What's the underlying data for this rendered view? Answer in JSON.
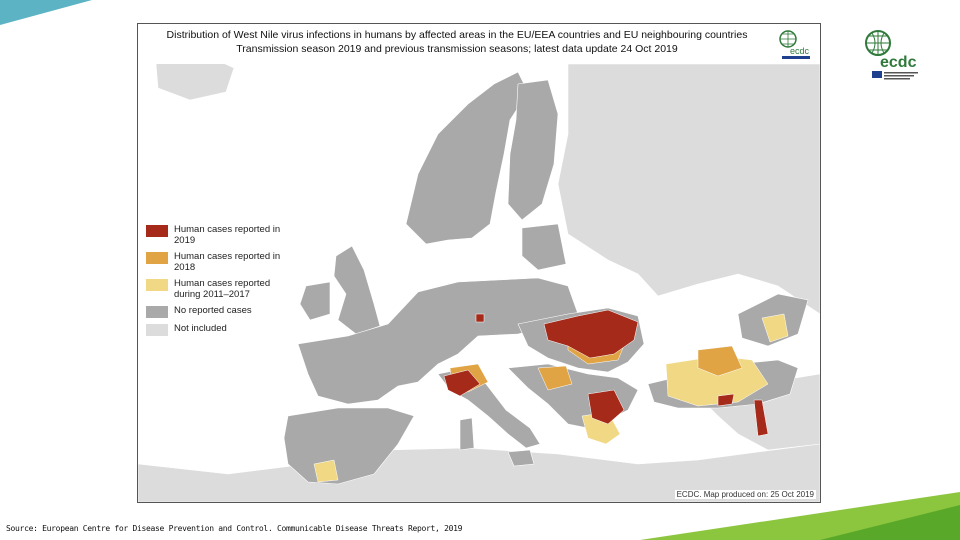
{
  "map": {
    "title_line1": "Distribution of West Nile virus infections in humans by affected areas in the EU/EEA countries and EU neighbouring countries",
    "title_line2": "Transmission season 2019 and previous transmission seasons; latest data update",
    "title_date": "24 Oct 2019",
    "credit": "ECDC. Map produced on: 25 Oct 2019",
    "small_logo_text": "ecdc",
    "colors": {
      "sea": "#ffffff",
      "reported_2019": "#a52a1a",
      "reported_2018": "#e0a444",
      "reported_2011_2017": "#f0d885",
      "no_cases": "#a9a9a9",
      "not_included": "#dcdcdc"
    }
  },
  "legend": [
    {
      "label": "Human cases reported in 2019",
      "color": "#a52a1a"
    },
    {
      "label": "Human cases reported in 2018",
      "color": "#e0a444"
    },
    {
      "label": "Human cases reported during 2011–2017",
      "color": "#f0d885"
    },
    {
      "label": "No reported cases",
      "color": "#a9a9a9"
    },
    {
      "label": "Not included",
      "color": "#dcdcdc"
    }
  ],
  "logo": {
    "text": "ecdc"
  },
  "footer": {
    "source": "Source: European Centre for Disease Prevention and Control. Communicable Disease Threats Report, 2019"
  }
}
